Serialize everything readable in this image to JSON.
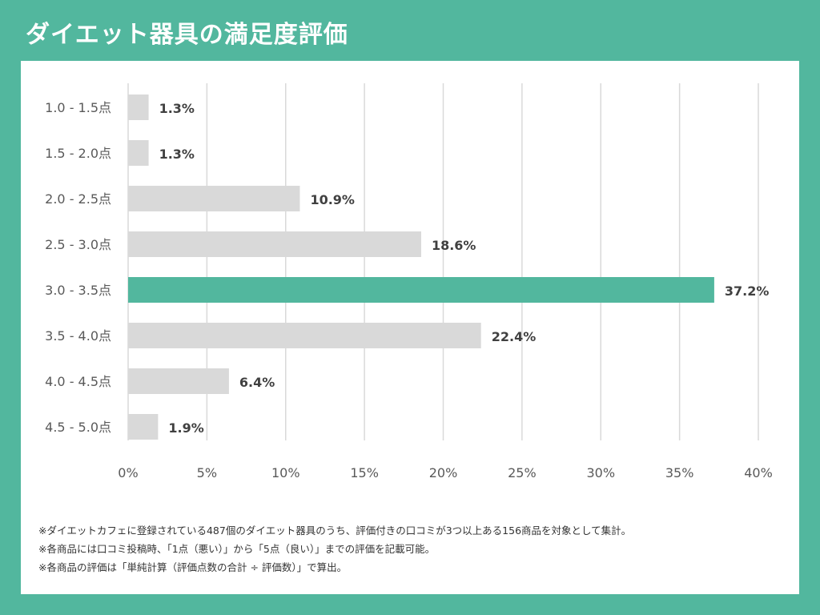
{
  "page": {
    "title": "ダイエット器具の満足度評価"
  },
  "chart_data": {
    "type": "bar",
    "orientation": "horizontal",
    "title": "ダイエット器具の満足度評価",
    "categories": [
      "1.0 - 1.5点",
      "1.5 - 2.0点",
      "2.0 - 2.5点",
      "2.5 - 3.0点",
      "3.0 - 3.5点",
      "3.5 - 4.0点",
      "4.0 - 4.5点",
      "4.5 - 5.0点"
    ],
    "values": [
      1.3,
      1.3,
      10.9,
      18.6,
      37.2,
      22.4,
      6.4,
      1.9
    ],
    "value_labels": [
      "1.3%",
      "1.3%",
      "10.9%",
      "18.6%",
      "37.2%",
      "22.4%",
      "6.4%",
      "1.9%"
    ],
    "highlight_index": 4,
    "xlim": [
      0,
      40
    ],
    "xticks": [
      0,
      5,
      10,
      15,
      20,
      25,
      30,
      35,
      40
    ],
    "xtick_labels": [
      "0%",
      "5%",
      "10%",
      "15%",
      "20%",
      "25%",
      "30%",
      "35%",
      "40%"
    ],
    "xlabel": "",
    "ylabel": "",
    "grid": true,
    "legend": "none"
  },
  "notes": [
    "※ダイエットカフェに登録されている487個のダイエット器具のうち、評価付きの口コミが3つ以上ある156商品を対象として集計。",
    "※各商品には口コミ投稿時、「1点（悪い）」から「5点（良い）」までの評価を記載可能。",
    "※各商品の評価は「単純計算（評価点数の合計 ÷ 評価数）」で算出。"
  ],
  "colors": {
    "background": "#52b79e",
    "panel": "#ffffff",
    "bar_default": "#d9d9d9",
    "bar_highlight": "#52b79e",
    "grid": "#d9d9d9",
    "text": "#595959",
    "label_text": "#404040"
  }
}
